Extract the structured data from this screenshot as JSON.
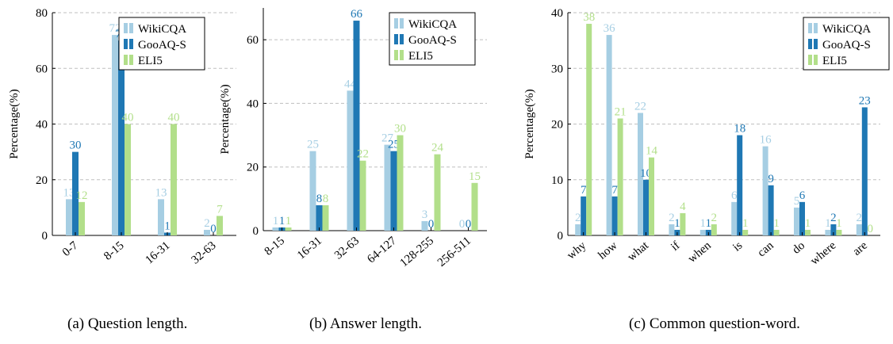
{
  "colors": {
    "wikicqa": "#a6cee3",
    "gooaq": "#1f78b4",
    "eli5": "#b2df8a"
  },
  "captions": [
    "(a) Question length.",
    "(b) Answer length.",
    "(c) Common question-word."
  ],
  "chart_data": [
    {
      "type": "bar",
      "ylabel": "Percentage(%)",
      "ylim": [
        0,
        80
      ],
      "yticks": [
        0,
        20,
        40,
        60,
        80
      ],
      "categories": [
        "0-7",
        "8-15",
        "16-31",
        "32-63"
      ],
      "series": [
        {
          "name": "WikiCQA",
          "values": [
            13,
            72,
            13,
            2
          ]
        },
        {
          "name": "GooAQ-S",
          "values": [
            30,
            70,
            1,
            0
          ]
        },
        {
          "name": "ELI5",
          "values": [
            12,
            40,
            40,
            7
          ]
        }
      ],
      "grid": "horizontal dashed",
      "legend": "top-right"
    },
    {
      "type": "bar",
      "ylabel": "Percentage(%)",
      "ylim": [
        0,
        70
      ],
      "yticks": [
        0,
        20,
        40,
        60
      ],
      "categories": [
        "8-15",
        "16-31",
        "32-63",
        "64-127",
        "128-255",
        "256-511"
      ],
      "series": [
        {
          "name": "WikiCQA",
          "values": [
            1,
            25,
            44,
            27,
            3,
            0
          ]
        },
        {
          "name": "GooAQ-S",
          "values": [
            1,
            8,
            66,
            25,
            0,
            0
          ]
        },
        {
          "name": "ELI5",
          "values": [
            1,
            8,
            22,
            30,
            24,
            15
          ]
        }
      ],
      "grid": "horizontal dashed",
      "legend": "top-right"
    },
    {
      "type": "bar",
      "ylabel": "Percentage(%)",
      "ylim": [
        0,
        40
      ],
      "yticks": [
        0,
        10,
        20,
        30,
        40
      ],
      "categories": [
        "why",
        "how",
        "what",
        "if",
        "when",
        "is",
        "can",
        "do",
        "where",
        "are"
      ],
      "series": [
        {
          "name": "WikiCQA",
          "values": [
            2,
            36,
            22,
            2,
            1,
            6,
            16,
            5,
            1,
            2
          ]
        },
        {
          "name": "GooAQ-S",
          "values": [
            7,
            7,
            10,
            1,
            1,
            18,
            9,
            6,
            2,
            23
          ]
        },
        {
          "name": "ELI5",
          "values": [
            38,
            21,
            14,
            4,
            2,
            1,
            1,
            1,
            1,
            0
          ]
        }
      ],
      "grid": "horizontal dashed",
      "legend": "top-right"
    }
  ]
}
